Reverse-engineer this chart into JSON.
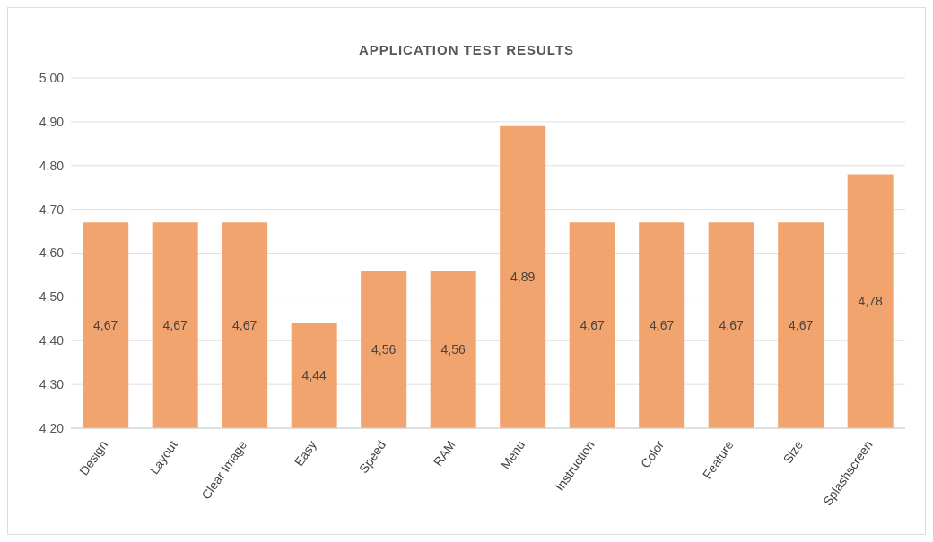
{
  "chart_data": {
    "type": "bar",
    "title": "APPLICATION TEST RESULTS",
    "categories": [
      "Design",
      "Layout",
      "Clear Image",
      "Easy",
      "Speed",
      "RAM",
      "Menu",
      "Instruction",
      "Color",
      "Feature",
      "Size",
      "Splashscreen"
    ],
    "values": [
      4.67,
      4.67,
      4.67,
      4.44,
      4.56,
      4.56,
      4.89,
      4.67,
      4.67,
      4.67,
      4.67,
      4.78
    ],
    "value_labels": [
      "4,67",
      "4,67",
      "4,67",
      "4,44",
      "4,56",
      "4,56",
      "4,89",
      "4,67",
      "4,67",
      "4,67",
      "4,67",
      "4,78"
    ],
    "color": "#f2a46f",
    "ylim": [
      4.2,
      5.0
    ],
    "yticks": [
      {
        "value": 4.2,
        "label": "4,20"
      },
      {
        "value": 4.3,
        "label": "4,30"
      },
      {
        "value": 4.4,
        "label": "4,40"
      },
      {
        "value": 4.5,
        "label": "4,50"
      },
      {
        "value": 4.6,
        "label": "4,60"
      },
      {
        "value": 4.7,
        "label": "4,70"
      },
      {
        "value": 4.8,
        "label": "4,80"
      },
      {
        "value": 4.9,
        "label": "4,90"
      },
      {
        "value": 5.0,
        "label": "5,00"
      }
    ],
    "grid": "y",
    "legend": false
  }
}
